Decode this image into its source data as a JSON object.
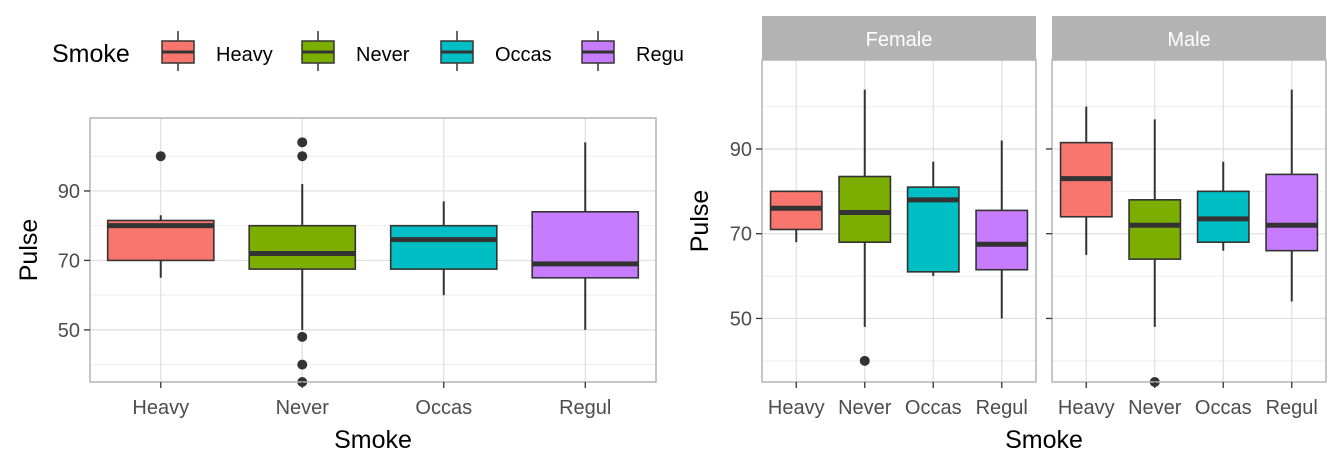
{
  "chart_data": [
    {
      "type": "box",
      "xlabel": "Smoke",
      "ylabel": "Pulse",
      "categories": [
        "Heavy",
        "Never",
        "Occas",
        "Regul"
      ],
      "y_range": [
        35,
        111
      ],
      "y_ticks": [
        50,
        70,
        90
      ],
      "grid": true,
      "legend": {
        "title": "Smoke",
        "placement": "top",
        "entries": [
          "Heavy",
          "Never",
          "Occas",
          "Regul"
        ],
        "visible_text": [
          "Heavy",
          "Never",
          "Occas",
          "Regu"
        ]
      },
      "boxes": [
        {
          "category": "Heavy",
          "lower": 65,
          "q1": 70,
          "median": 80,
          "q3": 81.5,
          "upper": 83,
          "outliers": [
            100
          ]
        },
        {
          "category": "Never",
          "lower": 50,
          "q1": 67.5,
          "median": 72,
          "q3": 80,
          "upper": 92,
          "outliers": [
            104,
            100,
            48,
            40,
            35
          ]
        },
        {
          "category": "Occas",
          "lower": 60,
          "q1": 67.5,
          "median": 76,
          "q3": 80,
          "upper": 87,
          "outliers": []
        },
        {
          "category": "Regul",
          "lower": 50,
          "q1": 65,
          "median": 69,
          "q3": 84,
          "upper": 104,
          "outliers": []
        }
      ]
    },
    {
      "type": "box",
      "xlabel": "Smoke",
      "ylabel": "Pulse",
      "categories": [
        "Heavy",
        "Never",
        "Occas",
        "Regul"
      ],
      "y_range": [
        35,
        111
      ],
      "y_ticks": [
        50,
        70,
        90
      ],
      "grid": true,
      "facets": [
        {
          "label": "Female",
          "boxes": [
            {
              "category": "Heavy",
              "lower": 68,
              "q1": 71,
              "median": 76,
              "q3": 80,
              "upper": 80,
              "outliers": []
            },
            {
              "category": "Never",
              "lower": 48,
              "q1": 68,
              "median": 75,
              "q3": 83.5,
              "upper": 104,
              "outliers": [
                40
              ]
            },
            {
              "category": "Occas",
              "lower": 60,
              "q1": 61,
              "median": 78,
              "q3": 81,
              "upper": 87,
              "outliers": []
            },
            {
              "category": "Regul",
              "lower": 50,
              "q1": 61.5,
              "median": 67.5,
              "q3": 75.5,
              "upper": 92,
              "outliers": []
            }
          ]
        },
        {
          "label": "Male",
          "boxes": [
            {
              "category": "Heavy",
              "lower": 65,
              "q1": 74,
              "median": 83,
              "q3": 91.5,
              "upper": 100,
              "outliers": []
            },
            {
              "category": "Never",
              "lower": 48,
              "q1": 64,
              "median": 72,
              "q3": 78,
              "upper": 97,
              "outliers": [
                35
              ]
            },
            {
              "category": "Occas",
              "lower": 66,
              "q1": 68,
              "median": 73.5,
              "q3": 80,
              "upper": 87,
              "outliers": []
            },
            {
              "category": "Regul",
              "lower": 54,
              "q1": 66,
              "median": 72,
              "q3": 84,
              "upper": 104,
              "outliers": []
            }
          ]
        }
      ]
    }
  ],
  "colors": {
    "Heavy": "#F8766D",
    "Never": "#7CAE00",
    "Occas": "#00BFC4",
    "Regul": "#C77CFF",
    "strip": "#b3b3b3",
    "grid_major": "#dedede",
    "grid_minor": "#eeeeee",
    "panel_border": "#b3b3b3",
    "box_line": "#333333"
  }
}
